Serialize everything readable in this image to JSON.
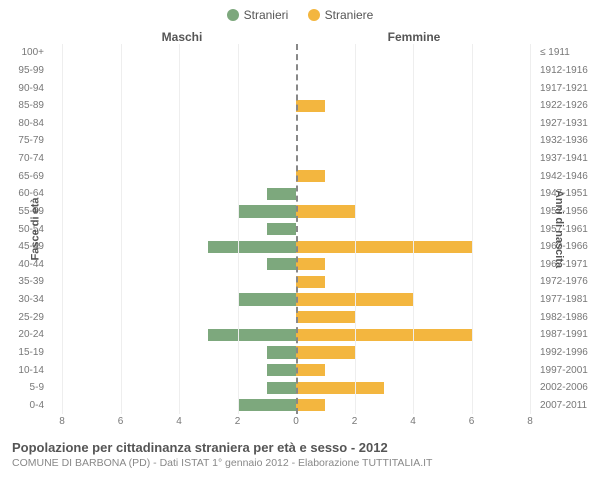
{
  "chart": {
    "type": "population-pyramid",
    "legend": {
      "male": {
        "label": "Stranieri",
        "color": "#7da87d"
      },
      "female": {
        "label": "Straniere",
        "color": "#f3b63f"
      }
    },
    "header_male": "Maschi",
    "header_female": "Femmine",
    "ylabel_left": "Fasce di età",
    "ylabel_right": "Anni di nascita",
    "xmax": 8,
    "xticks": [
      8,
      6,
      4,
      2,
      0,
      2,
      4,
      6,
      8
    ],
    "grid_color": "#eeeeee",
    "zero_line_color": "#888888",
    "background_color": "#ffffff",
    "bar_colors": {
      "male": "#7da87d",
      "female": "#f3b63f"
    },
    "rows": [
      {
        "age": "100+",
        "birth": "≤ 1911",
        "male": 0,
        "female": 0
      },
      {
        "age": "95-99",
        "birth": "1912-1916",
        "male": 0,
        "female": 0
      },
      {
        "age": "90-94",
        "birth": "1917-1921",
        "male": 0,
        "female": 0
      },
      {
        "age": "85-89",
        "birth": "1922-1926",
        "male": 0,
        "female": 1
      },
      {
        "age": "80-84",
        "birth": "1927-1931",
        "male": 0,
        "female": 0
      },
      {
        "age": "75-79",
        "birth": "1932-1936",
        "male": 0,
        "female": 0
      },
      {
        "age": "70-74",
        "birth": "1937-1941",
        "male": 0,
        "female": 0
      },
      {
        "age": "65-69",
        "birth": "1942-1946",
        "male": 0,
        "female": 1
      },
      {
        "age": "60-64",
        "birth": "1947-1951",
        "male": 1,
        "female": 0
      },
      {
        "age": "55-59",
        "birth": "1952-1956",
        "male": 2,
        "female": 2
      },
      {
        "age": "50-54",
        "birth": "1957-1961",
        "male": 1,
        "female": 0
      },
      {
        "age": "45-49",
        "birth": "1962-1966",
        "male": 3,
        "female": 6
      },
      {
        "age": "40-44",
        "birth": "1967-1971",
        "male": 1,
        "female": 1
      },
      {
        "age": "35-39",
        "birth": "1972-1976",
        "male": 0,
        "female": 1
      },
      {
        "age": "30-34",
        "birth": "1977-1981",
        "male": 2,
        "female": 4
      },
      {
        "age": "25-29",
        "birth": "1982-1986",
        "male": 0,
        "female": 2
      },
      {
        "age": "20-24",
        "birth": "1987-1991",
        "male": 3,
        "female": 6
      },
      {
        "age": "15-19",
        "birth": "1992-1996",
        "male": 1,
        "female": 2
      },
      {
        "age": "10-14",
        "birth": "1997-2001",
        "male": 1,
        "female": 1
      },
      {
        "age": "5-9",
        "birth": "2002-2006",
        "male": 1,
        "female": 3
      },
      {
        "age": "0-4",
        "birth": "2007-2011",
        "male": 2,
        "female": 1
      }
    ],
    "title": "Popolazione per cittadinanza straniera per età e sesso - 2012",
    "subtitle": "COMUNE DI BARBONA (PD) - Dati ISTAT 1° gennaio 2012 - Elaborazione TUTTITALIA.IT"
  }
}
